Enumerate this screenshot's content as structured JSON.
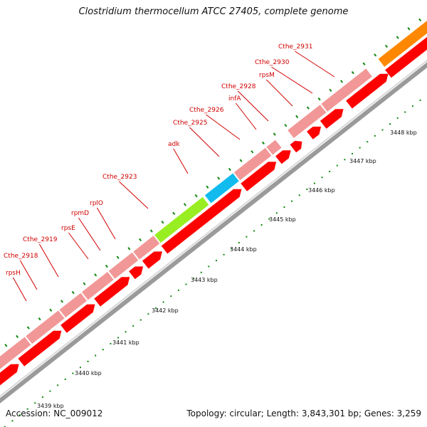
{
  "title": "Clostridium thermocellum ATCC 27405, complete genome",
  "footer": {
    "accession": "Accession: NC_009012",
    "topology": "Topology: circular; Length: 3,843,301 bp; Genes: 3,259"
  },
  "colors": {
    "cds": "#ff0000",
    "cds_light": "#f29797",
    "highlight_green": "#99ee22",
    "highlight_blue": "#11bbee",
    "highlight_orange": "#ff8800",
    "label": "#d00000",
    "tick": "#118811",
    "backbone": "#9a9a9a"
  },
  "scale_labels": [
    "3439 kbp",
    "3440 kbp",
    "3441 kbp",
    "3442 kbp",
    "3443 kbp",
    "3444 kbp",
    "3445 kbp",
    "3446 kbp",
    "3447 kbp",
    "3448 kbp"
  ],
  "gene_labels": [
    "rpsH",
    "Cthe_2918",
    "Cthe_2919",
    "rpsE",
    "rpmD",
    "rplO",
    "Cthe_2923",
    "adk",
    "Cthe_2925",
    "Cthe_2926",
    "infA",
    "Cthe_2928",
    "rpsM",
    "Cthe_2930",
    "Cthe_2931"
  ]
}
